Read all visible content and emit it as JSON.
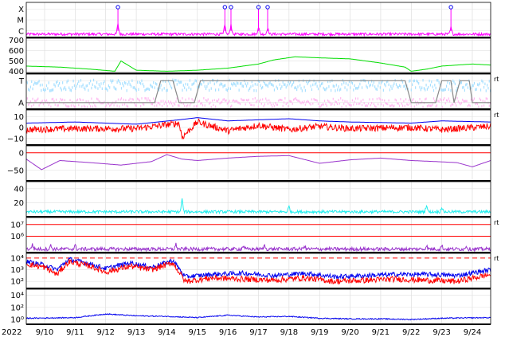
{
  "chart_data": {
    "type": "line",
    "x_start_label": "2022",
    "x_tick_labels": [
      "9/10",
      "9/11",
      "9/12",
      "9/13",
      "9/14",
      "9/15",
      "9/16",
      "9/17",
      "9/18",
      "9/19",
      "9/20",
      "9/21",
      "9/22",
      "9/23",
      "9/24"
    ],
    "x_range_days": [
      9.4,
      24.6
    ],
    "colors": {
      "magenta": "#ff00ff",
      "green": "#00dd00",
      "lightblue": "#a8e0ff",
      "pink": "#ffb8f0",
      "red": "#ff0000",
      "blue": "#0000ee",
      "purple": "#9933cc",
      "cyan": "#22eeee",
      "black": "#000000",
      "gray": "#888888"
    },
    "panels": [
      {
        "id": "xray-class",
        "tick_labels": [
          "X",
          "M",
          "C"
        ],
        "tick_values": [
          3,
          2,
          1
        ],
        "ylim": [
          0.4,
          3.6
        ],
        "side_label": "",
        "flare_markers_days": [
          12.4,
          15.9,
          16.1,
          17.0,
          17.3,
          23.3
        ],
        "series": [
          {
            "color": "magenta",
            "baseline": 0.7,
            "noise": 0.12,
            "spikes": [
              [
                12.4,
                0.9
              ],
              [
                15.9,
                0.8
              ],
              [
                16.1,
                0.9
              ],
              [
                17.0,
                0.7
              ],
              [
                17.3,
                0.6
              ],
              [
                23.3,
                0.6
              ]
            ]
          }
        ]
      },
      {
        "id": "solar-wind-speed",
        "tick_labels": [
          "700",
          "600",
          "500",
          "400"
        ],
        "tick_values": [
          700,
          600,
          500,
          400
        ],
        "ylim": [
          380,
          720
        ],
        "side_label": "",
        "series": [
          {
            "color": "green",
            "keypoints": [
              [
                9.4,
                450
              ],
              [
                10.5,
                440
              ],
              [
                11.5,
                420
              ],
              [
                12.3,
                400
              ],
              [
                12.5,
                500
              ],
              [
                13.0,
                410
              ],
              [
                14.0,
                400
              ],
              [
                15.0,
                410
              ],
              [
                16.0,
                430
              ],
              [
                17.0,
                470
              ],
              [
                17.5,
                510
              ],
              [
                18.2,
                540
              ],
              [
                19.0,
                530
              ],
              [
                20.0,
                520
              ],
              [
                21.0,
                480
              ],
              [
                21.8,
                440
              ],
              [
                22.0,
                400
              ],
              [
                22.5,
                420
              ],
              [
                23.0,
                450
              ],
              [
                24.0,
                470
              ],
              [
                24.6,
                460
              ]
            ]
          }
        ]
      },
      {
        "id": "imf-sector",
        "tick_labels": [
          "T",
          "A"
        ],
        "tick_values": [
          1,
          0
        ],
        "ylim": [
          -0.3,
          1.3
        ],
        "side_label": "rt",
        "series": [
          {
            "color": "lightblue",
            "scatter": true,
            "center": 0.85,
            "spread": 0.25
          },
          {
            "color": "pink",
            "scatter": true,
            "center": 0.05,
            "spread": 0.2
          },
          {
            "color": "gray",
            "step": [
              [
                9.4,
                0
              ],
              [
                13.6,
                0
              ],
              [
                13.8,
                1
              ],
              [
                14.2,
                1
              ],
              [
                14.4,
                0
              ],
              [
                14.9,
                0
              ],
              [
                15.1,
                1
              ],
              [
                21.8,
                1
              ],
              [
                22.0,
                0
              ],
              [
                22.8,
                0
              ],
              [
                23.0,
                1
              ],
              [
                23.3,
                1
              ],
              [
                23.4,
                0
              ],
              [
                23.6,
                1
              ],
              [
                23.9,
                1
              ],
              [
                24.0,
                0
              ],
              [
                24.6,
                0
              ]
            ]
          }
        ]
      },
      {
        "id": "bz-bt",
        "tick_labels": [
          "10",
          "0",
          "−10"
        ],
        "tick_values": [
          10,
          0,
          -10
        ],
        "ylim": [
          -16,
          16
        ],
        "side_label": "rt",
        "series": [
          {
            "color": "blue",
            "keypoints": [
              [
                9.4,
                4
              ],
              [
                11.0,
                5
              ],
              [
                13.0,
                3
              ],
              [
                14.4,
                7
              ],
              [
                15.0,
                9
              ],
              [
                16.0,
                6
              ],
              [
                18.0,
                8
              ],
              [
                19.0,
                6
              ],
              [
                20.0,
                5
              ],
              [
                22.0,
                4
              ],
              [
                23.0,
                6
              ],
              [
                24.6,
                5
              ]
            ]
          },
          {
            "color": "red",
            "keypoints": [
              [
                9.4,
                -2
              ],
              [
                11.0,
                -1
              ],
              [
                13.0,
                -1
              ],
              [
                14.4,
                4
              ],
              [
                14.5,
                -9
              ],
              [
                15.0,
                5
              ],
              [
                16.0,
                -3
              ],
              [
                17.0,
                2
              ],
              [
                18.0,
                -2
              ],
              [
                19.0,
                1
              ],
              [
                20.0,
                -1
              ],
              [
                22.0,
                0
              ],
              [
                23.0,
                -2
              ],
              [
                24.6,
                1
              ]
            ],
            "noise": 3
          }
        ]
      },
      {
        "id": "dst-index",
        "tick_labels": [
          "0",
          "−50"
        ],
        "tick_values": [
          0,
          -50
        ],
        "ylim": [
          -80,
          20
        ],
        "side_label": "",
        "series": [
          {
            "color": "purple",
            "keypoints": [
              [
                9.4,
                -18
              ],
              [
                9.9,
                -48
              ],
              [
                10.5,
                -22
              ],
              [
                11.5,
                -28
              ],
              [
                12.5,
                -35
              ],
              [
                13.5,
                -25
              ],
              [
                14.0,
                -5
              ],
              [
                14.5,
                -18
              ],
              [
                15.0,
                -22
              ],
              [
                16.0,
                -15
              ],
              [
                17.0,
                -10
              ],
              [
                18.0,
                -8
              ],
              [
                19.0,
                -30
              ],
              [
                20.0,
                -20
              ],
              [
                21.0,
                -15
              ],
              [
                22.0,
                -22
              ],
              [
                22.8,
                -25
              ],
              [
                23.5,
                -28
              ],
              [
                24.0,
                -40
              ],
              [
                24.6,
                -22
              ]
            ]
          },
          {
            "color": "red",
            "constant": 0
          }
        ]
      },
      {
        "id": "ap-index",
        "tick_labels": [
          "40",
          "20"
        ],
        "tick_values": [
          40,
          20
        ],
        "ylim": [
          0,
          50
        ],
        "side_label": "",
        "series": [
          {
            "color": "cyan",
            "baseline": 7,
            "noise": 2,
            "spikes": [
              [
                14.5,
                18
              ],
              [
                18.0,
                8
              ],
              [
                22.5,
                10
              ],
              [
                23.0,
                7
              ]
            ]
          }
        ]
      },
      {
        "id": "electron-flux",
        "tick_labels": [
          "10⁷",
          "10⁶"
        ],
        "tick_values": [
          7,
          6
        ],
        "ylim": [
          4.6,
          7.6
        ],
        "side_label": "rt",
        "series": [
          {
            "color": "red",
            "constant": 7
          },
          {
            "color": "red",
            "constant": 6
          },
          {
            "color": "purple",
            "baseline": 4.9,
            "noise": 0.15,
            "spikes": [
              [
                9.6,
                0.4
              ],
              [
                10.2,
                0.3
              ],
              [
                11.0,
                0.3
              ],
              [
                14.3,
                0.4
              ],
              [
                16.5,
                0.3
              ],
              [
                17.2,
                0.3
              ],
              [
                18.5,
                0.3
              ],
              [
                22.5,
                0.3
              ],
              [
                23.0,
                0.3
              ],
              [
                23.8,
                0.3
              ]
            ]
          }
        ]
      },
      {
        "id": "proton-flux",
        "tick_labels": [
          "10⁴",
          "10³",
          "10²"
        ],
        "tick_values": [
          4,
          3,
          2
        ],
        "ylim": [
          1.4,
          4.4
        ],
        "side_label": "rt",
        "series": [
          {
            "color": "red",
            "constant": 4,
            "dashed": true
          },
          {
            "color": "blue",
            "keypoints": [
              [
                9.4,
                3.7
              ],
              [
                10.0,
                3.4
              ],
              [
                10.4,
                3.0
              ],
              [
                10.8,
                3.9
              ],
              [
                11.5,
                3.5
              ],
              [
                12.0,
                3.1
              ],
              [
                12.8,
                3.6
              ],
              [
                13.5,
                3.2
              ],
              [
                14.2,
                3.8
              ],
              [
                14.6,
                2.4
              ],
              [
                15.5,
                2.6
              ],
              [
                16.5,
                2.7
              ],
              [
                17.5,
                2.5
              ],
              [
                18.5,
                2.7
              ],
              [
                19.5,
                2.4
              ],
              [
                20.5,
                2.5
              ],
              [
                21.5,
                2.6
              ],
              [
                22.5,
                2.6
              ],
              [
                23.5,
                2.5
              ],
              [
                24.6,
                3.0
              ]
            ],
            "noise": 0.2
          },
          {
            "color": "red",
            "keypoints": [
              [
                9.4,
                3.5
              ],
              [
                10.0,
                3.2
              ],
              [
                10.4,
                2.6
              ],
              [
                10.8,
                3.7
              ],
              [
                11.5,
                3.3
              ],
              [
                12.0,
                2.8
              ],
              [
                12.8,
                3.3
              ],
              [
                13.5,
                3.0
              ],
              [
                14.2,
                3.6
              ],
              [
                14.6,
                2.0
              ],
              [
                15.5,
                2.3
              ],
              [
                16.5,
                2.2
              ],
              [
                17.5,
                2.1
              ],
              [
                18.5,
                2.3
              ],
              [
                19.5,
                2.0
              ],
              [
                20.5,
                2.1
              ],
              [
                21.5,
                2.2
              ],
              [
                22.5,
                2.1
              ],
              [
                23.5,
                2.0
              ],
              [
                24.6,
                2.6
              ]
            ],
            "noise": 0.25
          }
        ]
      },
      {
        "id": "xray-background",
        "tick_labels": [
          "10⁴",
          "10²",
          "10⁰"
        ],
        "tick_values": [
          4,
          2,
          0
        ],
        "ylim": [
          -0.8,
          5
        ],
        "side_label": "",
        "series": [
          {
            "color": "blue",
            "keypoints": [
              [
                9.4,
                0.2
              ],
              [
                11.0,
                0.3
              ],
              [
                12.0,
                0.9
              ],
              [
                13.0,
                0.6
              ],
              [
                14.0,
                0.5
              ],
              [
                15.0,
                0.3
              ],
              [
                16.0,
                0.7
              ],
              [
                17.0,
                0.4
              ],
              [
                18.0,
                0.5
              ],
              [
                19.0,
                0.2
              ],
              [
                20.0,
                0.1
              ],
              [
                21.0,
                0.1
              ],
              [
                22.0,
                0.0
              ],
              [
                23.0,
                0.2
              ],
              [
                24.6,
                0.3
              ]
            ],
            "noise": 0.08
          }
        ]
      }
    ]
  }
}
